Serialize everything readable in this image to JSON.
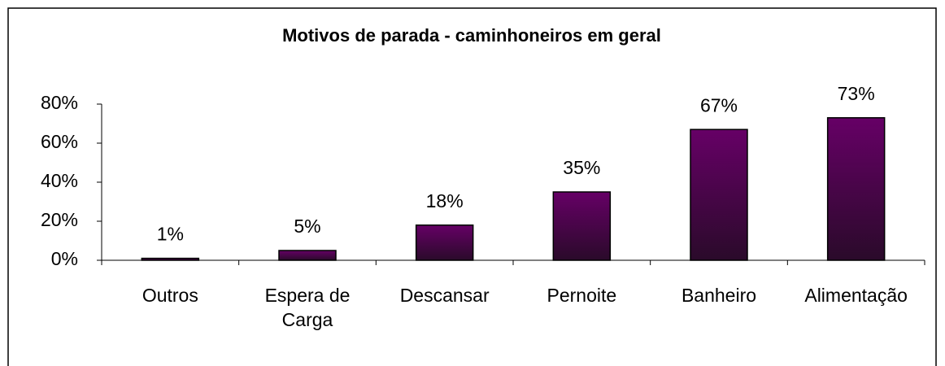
{
  "chart_data": {
    "type": "bar",
    "title": "Motivos de parada - caminhoneiros em geral",
    "categories": [
      "Outros",
      "Espera de Carga",
      "Descansar",
      "Pernoite",
      "Banheiro",
      "Alimentação"
    ],
    "values": [
      1,
      5,
      18,
      35,
      67,
      73
    ],
    "value_labels": [
      "1%",
      "5%",
      "18%",
      "35%",
      "67%",
      "73%"
    ],
    "color": "#660066",
    "ylim": [
      0,
      80
    ],
    "yticks": [
      {
        "value": 0,
        "label": "0%"
      },
      {
        "value": 20,
        "label": "20%"
      },
      {
        "value": 40,
        "label": "40%"
      },
      {
        "value": 60,
        "label": "60%"
      },
      {
        "value": 80,
        "label": "80%"
      }
    ],
    "grid": false
  }
}
